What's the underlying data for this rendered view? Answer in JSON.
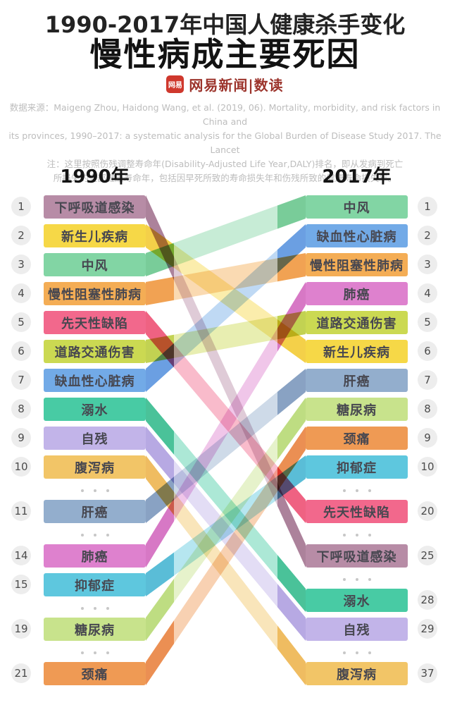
{
  "header": {
    "title_line1": "1990-2017年中国人健康杀手变化",
    "title_line2": "慢性病成主要死因",
    "logo": {
      "badge": "网易",
      "text": "网易新闻|数读"
    },
    "source_lines": [
      "数据来源：Maigeng Zhou, Haidong Wang, et al. (2019, 06). Mortality, morbidity, and risk factors in China and",
      "its provinces, 1990–2017: a systematic analysis for the Global Burden of Disease Study 2017. The Lancet",
      "注：这里按照伤残调整寿命年(Disability-Adjusted Life Year,DALY)排名，即从发病到死亡",
      "所损失的全部健康寿命年，包括因早死所致的寿命损失年和伤残所致的健康寿命损失年。"
    ]
  },
  "chart_data": {
    "type": "bump",
    "title": "1990-2017年中国人健康杀手变化：慢性病成主要死因",
    "ranking_metric": "伤残调整寿命年(Disability-Adjusted Life Year,DALY)",
    "column_headers": [
      "1990年",
      "2017年"
    ],
    "series": [
      {
        "name": "下呼吸道感染",
        "rank_1990": 1,
        "rank_2017": 25,
        "color": "#b78ca6"
      },
      {
        "name": "新生儿疾病",
        "rank_1990": 2,
        "rank_2017": 6,
        "color": "#f6d847"
      },
      {
        "name": "中风",
        "rank_1990": 3,
        "rank_2017": 1,
        "color": "#82d5a4"
      },
      {
        "name": "慢性阻塞性肺病",
        "rank_1990": 4,
        "rank_2017": 3,
        "color": "#f4ad55"
      },
      {
        "name": "先天性缺陷",
        "rank_1990": 5,
        "rank_2017": 20,
        "color": "#f2688c"
      },
      {
        "name": "道路交通伤害",
        "rank_1990": 6,
        "rank_2017": 5,
        "color": "#cbd952"
      },
      {
        "name": "缺血性心脏病",
        "rank_1990": 7,
        "rank_2017": 2,
        "color": "#72aae7"
      },
      {
        "name": "溺水",
        "rank_1990": 8,
        "rank_2017": 28,
        "color": "#48cba4"
      },
      {
        "name": "自残",
        "rank_1990": 9,
        "rank_2017": 29,
        "color": "#c2b4e9"
      },
      {
        "name": "腹泻病",
        "rank_1990": 10,
        "rank_2017": 37,
        "color": "#f2c567"
      },
      {
        "name": "肝癌",
        "rank_1990": 11,
        "rank_2017": 7,
        "color": "#93aecd"
      },
      {
        "name": "肺癌",
        "rank_1990": 14,
        "rank_2017": 4,
        "color": "#de81ce"
      },
      {
        "name": "抑郁症",
        "rank_1990": 15,
        "rank_2017": 10,
        "color": "#5ec7de"
      },
      {
        "name": "糖尿病",
        "rank_1990": 19,
        "rank_2017": 8,
        "color": "#c8e38c"
      },
      {
        "name": "颈痛",
        "rank_1990": 21,
        "rank_2017": 9,
        "color": "#ef9a54"
      }
    ],
    "left_entries": [
      {
        "rank": "1",
        "name": "下呼吸道感染"
      },
      {
        "rank": "2",
        "name": "新生儿疾病"
      },
      {
        "rank": "3",
        "name": "中风"
      },
      {
        "rank": "4",
        "name": "慢性阻塞性肺病"
      },
      {
        "rank": "5",
        "name": "先天性缺陷"
      },
      {
        "rank": "6",
        "name": "道路交通伤害"
      },
      {
        "rank": "7",
        "name": "缺血性心脏病"
      },
      {
        "rank": "8",
        "name": "溺水"
      },
      {
        "rank": "9",
        "name": "自残"
      },
      {
        "rank": "10",
        "name": "腹泻病"
      },
      {
        "dots": true
      },
      {
        "rank": "11",
        "name": "肝癌"
      },
      {
        "dots": true
      },
      {
        "rank": "14",
        "name": "肺癌"
      },
      {
        "rank": "15",
        "name": "抑郁症"
      },
      {
        "dots": true
      },
      {
        "rank": "19",
        "name": "糖尿病"
      },
      {
        "dots": true
      },
      {
        "rank": "21",
        "name": "颈痛"
      }
    ],
    "right_entries": [
      {
        "rank": "1",
        "name": "中风"
      },
      {
        "rank": "2",
        "name": "缺血性心脏病"
      },
      {
        "rank": "3",
        "name": "慢性阻塞性肺病"
      },
      {
        "rank": "4",
        "name": "肺癌"
      },
      {
        "rank": "5",
        "name": "道路交通伤害"
      },
      {
        "rank": "6",
        "name": "新生儿疾病"
      },
      {
        "rank": "7",
        "name": "肝癌"
      },
      {
        "rank": "8",
        "name": "糖尿病"
      },
      {
        "rank": "9",
        "name": "颈痛"
      },
      {
        "rank": "10",
        "name": "抑郁症"
      },
      {
        "dots": true
      },
      {
        "rank": "20",
        "name": "先天性缺陷"
      },
      {
        "dots": true
      },
      {
        "rank": "25",
        "name": "下呼吸道感染"
      },
      {
        "dots": true
      },
      {
        "rank": "28",
        "name": "溺水"
      },
      {
        "rank": "29",
        "name": "自残"
      },
      {
        "dots": true
      },
      {
        "rank": "37",
        "name": "腹泻病"
      }
    ]
  }
}
